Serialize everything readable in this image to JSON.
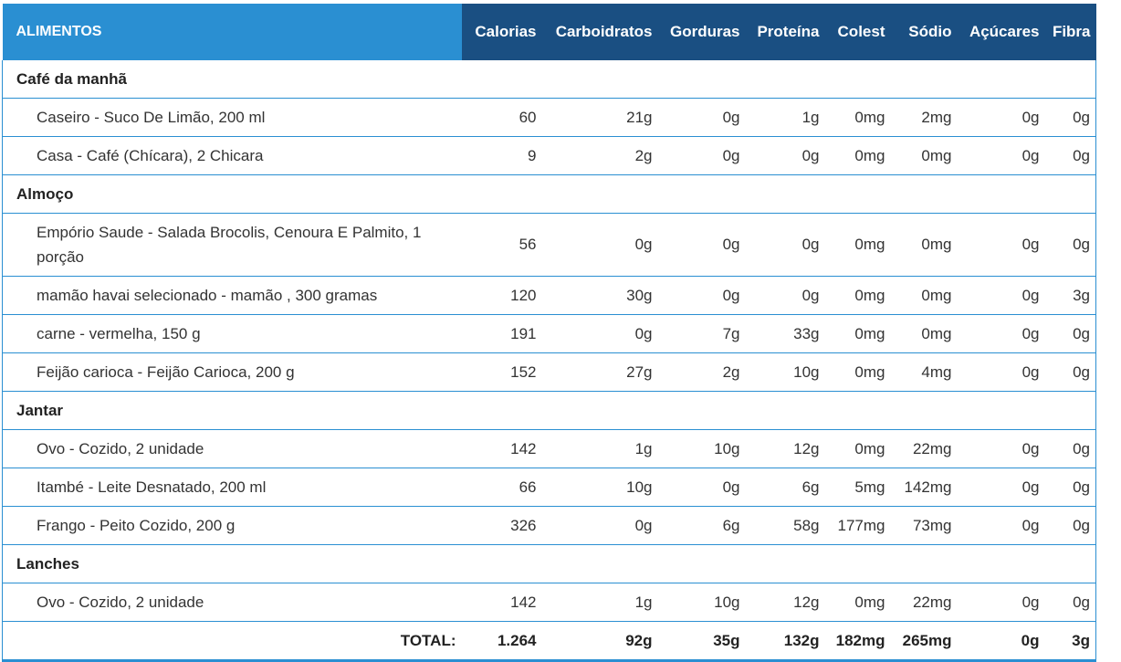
{
  "header": {
    "foods": "ALIMENTOS",
    "columns": [
      "Calorias",
      "Carboidratos",
      "Gorduras",
      "Proteína",
      "Colest",
      "Sódio",
      "Açúcares",
      "Fibra"
    ]
  },
  "meals": [
    {
      "name": "Café da manhã",
      "items": [
        {
          "name": "Caseiro - Suco De Limão, 200 ml",
          "values": [
            "60",
            "21g",
            "0g",
            "1g",
            "0mg",
            "2mg",
            "0g",
            "0g"
          ]
        },
        {
          "name": "Casa - Café (Chícara), 2 Chicara",
          "values": [
            "9",
            "2g",
            "0g",
            "0g",
            "0mg",
            "0mg",
            "0g",
            "0g"
          ]
        }
      ]
    },
    {
      "name": "Almoço",
      "items": [
        {
          "name": "Empório Saude - Salada Brocolis, Cenoura E Palmito, 1 porção",
          "values": [
            "56",
            "0g",
            "0g",
            "0g",
            "0mg",
            "0mg",
            "0g",
            "0g"
          ]
        },
        {
          "name": "mamão havai selecionado - mamão , 300 gramas",
          "values": [
            "120",
            "30g",
            "0g",
            "0g",
            "0mg",
            "0mg",
            "0g",
            "3g"
          ]
        },
        {
          "name": "carne - vermelha, 150 g",
          "values": [
            "191",
            "0g",
            "7g",
            "33g",
            "0mg",
            "0mg",
            "0g",
            "0g"
          ]
        },
        {
          "name": "Feijão carioca - Feijão Carioca, 200 g",
          "values": [
            "152",
            "27g",
            "2g",
            "10g",
            "0mg",
            "4mg",
            "0g",
            "0g"
          ]
        }
      ]
    },
    {
      "name": "Jantar",
      "items": [
        {
          "name": "Ovo - Cozido, 2 unidade",
          "values": [
            "142",
            "1g",
            "10g",
            "12g",
            "0mg",
            "22mg",
            "0g",
            "0g"
          ]
        },
        {
          "name": "Itambé - Leite Desnatado, 200 ml",
          "values": [
            "66",
            "10g",
            "0g",
            "6g",
            "5mg",
            "142mg",
            "0g",
            "0g"
          ]
        },
        {
          "name": "Frango - Peito Cozido, 200 g",
          "values": [
            "326",
            "0g",
            "6g",
            "58g",
            "177mg",
            "73mg",
            "0g",
            "0g"
          ]
        }
      ]
    },
    {
      "name": "Lanches",
      "items": [
        {
          "name": "Ovo - Cozido, 2 unidade",
          "values": [
            "142",
            "1g",
            "10g",
            "12g",
            "0mg",
            "22mg",
            "0g",
            "0g"
          ]
        }
      ]
    }
  ],
  "total": {
    "label": "TOTAL:",
    "values": [
      "1.264",
      "92g",
      "35g",
      "132g",
      "182mg",
      "265mg",
      "0g",
      "3g"
    ]
  },
  "colors": {
    "header_light": "#2a8fd2",
    "header_dark": "#1a4f82",
    "border": "#2a8fd2"
  }
}
